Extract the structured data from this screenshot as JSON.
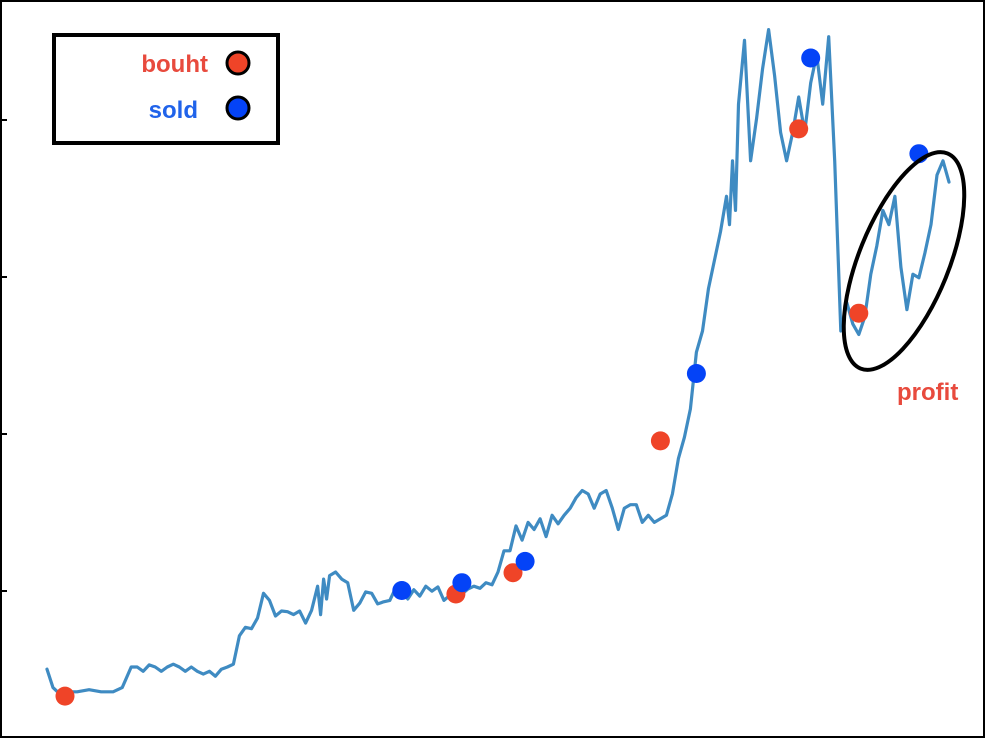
{
  "chart_data": {
    "type": "line",
    "title": "",
    "xlabel": "",
    "ylabel": "",
    "xlim": [
      0,
      300
    ],
    "ylim": [
      0,
      100
    ],
    "grid": false,
    "legend_position": "top-left",
    "series": [
      {
        "color": "#3f8bc2",
        "points": [
          [
            0,
            8.3
          ],
          [
            2,
            5.7
          ],
          [
            5,
            4.5
          ],
          [
            8,
            5.1
          ],
          [
            10,
            5.1
          ],
          [
            14,
            5.4
          ],
          [
            18,
            5.1
          ],
          [
            22,
            5.1
          ],
          [
            25,
            5.7
          ],
          [
            28,
            8.6
          ],
          [
            30,
            8.6
          ],
          [
            32,
            8.0
          ],
          [
            34,
            8.9
          ],
          [
            36,
            8.6
          ],
          [
            38,
            8.0
          ],
          [
            40,
            8.6
          ],
          [
            42,
            9.0
          ],
          [
            44,
            8.6
          ],
          [
            46,
            8.0
          ],
          [
            48,
            8.6
          ],
          [
            50,
            8.0
          ],
          [
            52,
            7.6
          ],
          [
            54,
            8.0
          ],
          [
            56,
            7.3
          ],
          [
            58,
            8.3
          ],
          [
            60,
            8.6
          ],
          [
            62,
            9.0
          ],
          [
            64,
            13.0
          ],
          [
            66,
            14.2
          ],
          [
            68,
            14.0
          ],
          [
            70,
            15.5
          ],
          [
            72,
            19.0
          ],
          [
            74,
            18.0
          ],
          [
            76,
            15.8
          ],
          [
            78,
            16.5
          ],
          [
            80,
            16.4
          ],
          [
            82,
            16.0
          ],
          [
            84,
            16.5
          ],
          [
            86,
            14.8
          ],
          [
            88,
            16.6
          ],
          [
            90,
            20.0
          ],
          [
            91,
            16.0
          ],
          [
            92,
            21.0
          ],
          [
            93,
            18.2
          ],
          [
            94,
            21.5
          ],
          [
            96,
            22.0
          ],
          [
            98,
            21.0
          ],
          [
            100,
            20.5
          ],
          [
            102,
            16.6
          ],
          [
            104,
            17.6
          ],
          [
            106,
            19.2
          ],
          [
            108,
            19.0
          ],
          [
            110,
            17.5
          ],
          [
            112,
            17.8
          ],
          [
            114,
            18.0
          ],
          [
            116,
            19.8
          ],
          [
            118,
            19.4
          ],
          [
            120,
            18.2
          ],
          [
            122,
            19.5
          ],
          [
            124,
            18.6
          ],
          [
            126,
            20.0
          ],
          [
            128,
            19.3
          ],
          [
            130,
            19.9
          ],
          [
            132,
            18.0
          ],
          [
            134,
            18.7
          ],
          [
            136,
            19.5
          ],
          [
            138,
            18.9
          ],
          [
            140,
            19.6
          ],
          [
            142,
            20.0
          ],
          [
            144,
            19.7
          ],
          [
            146,
            20.5
          ],
          [
            148,
            20.2
          ],
          [
            150,
            22.0
          ],
          [
            152,
            25.0
          ],
          [
            154,
            25.0
          ],
          [
            156,
            28.5
          ],
          [
            158,
            26.5
          ],
          [
            160,
            29.0
          ],
          [
            162,
            28.0
          ],
          [
            164,
            29.5
          ],
          [
            166,
            27.0
          ],
          [
            168,
            30.0
          ],
          [
            170,
            28.8
          ],
          [
            172,
            30.0
          ],
          [
            174,
            31.0
          ],
          [
            176,
            32.5
          ],
          [
            178,
            33.5
          ],
          [
            180,
            33.0
          ],
          [
            182,
            31.0
          ],
          [
            184,
            33.0
          ],
          [
            186,
            33.5
          ],
          [
            188,
            31.0
          ],
          [
            190,
            28.0
          ],
          [
            192,
            31.0
          ],
          [
            194,
            31.5
          ],
          [
            196,
            31.5
          ],
          [
            198,
            29.0
          ],
          [
            200,
            30.0
          ],
          [
            202,
            29.0
          ],
          [
            204,
            29.5
          ],
          [
            206,
            30.0
          ],
          [
            208,
            33.0
          ],
          [
            210,
            38.0
          ],
          [
            212,
            41.0
          ],
          [
            214,
            45.0
          ],
          [
            216,
            53.0
          ],
          [
            218,
            56.0
          ],
          [
            220,
            62.0
          ],
          [
            222,
            66.0
          ],
          [
            224,
            70.0
          ],
          [
            226,
            75.0
          ],
          [
            227,
            71.0
          ],
          [
            228,
            80.0
          ],
          [
            229,
            73.0
          ],
          [
            230,
            88.0
          ],
          [
            232,
            97.0
          ],
          [
            234,
            80.0
          ],
          [
            236,
            86.0
          ],
          [
            238,
            93.0
          ],
          [
            240,
            98.5
          ],
          [
            242,
            92.0
          ],
          [
            244,
            84.0
          ],
          [
            246,
            80.0
          ],
          [
            248,
            84.0
          ],
          [
            250,
            89.0
          ],
          [
            252,
            84.0
          ],
          [
            254,
            91.0
          ],
          [
            256,
            95.0
          ],
          [
            258,
            88.0
          ],
          [
            260,
            97.5
          ],
          [
            262,
            80.0
          ],
          [
            264,
            56.0
          ],
          [
            266,
            60.0
          ],
          [
            268,
            57.0
          ],
          [
            270,
            55.5
          ],
          [
            272,
            58.0
          ],
          [
            274,
            64.0
          ],
          [
            276,
            68.0
          ],
          [
            278,
            73.0
          ],
          [
            280,
            71.0
          ],
          [
            282,
            75.0
          ],
          [
            284,
            65.0
          ],
          [
            286,
            59.0
          ],
          [
            288,
            64.0
          ],
          [
            290,
            63.5
          ],
          [
            292,
            67.0
          ],
          [
            294,
            71.0
          ],
          [
            296,
            78.0
          ],
          [
            298,
            80.0
          ],
          [
            300,
            77.0
          ]
        ]
      }
    ],
    "markers": [
      {
        "type": "bought",
        "x": 6,
        "y": 4.5
      },
      {
        "type": "sold",
        "x": 118,
        "y": 19.4
      },
      {
        "type": "bought",
        "x": 136,
        "y": 18.9
      },
      {
        "type": "sold",
        "x": 138,
        "y": 20.5
      },
      {
        "type": "bought",
        "x": 155,
        "y": 21.9
      },
      {
        "type": "sold",
        "x": 159,
        "y": 23.5
      },
      {
        "type": "bought",
        "x": 204,
        "y": 40.5
      },
      {
        "type": "sold",
        "x": 216,
        "y": 50.0
      },
      {
        "type": "bought",
        "x": 250,
        "y": 84.5
      },
      {
        "type": "sold",
        "x": 254,
        "y": 94.5
      },
      {
        "type": "bought",
        "x": 270,
        "y": 58.5
      },
      {
        "type": "sold",
        "x": 290,
        "y": 81.0
      }
    ],
    "legend": [
      {
        "label": "bouht",
        "marker_color": "#ef4428"
      },
      {
        "label": "sold",
        "marker_color": "#0443f7"
      }
    ],
    "annotation": {
      "text": "profit",
      "color": "#e84a3d"
    }
  },
  "colors": {
    "line": "#3f8bc2",
    "bought": "#ef4428",
    "sold": "#0443f7",
    "bought_label": "#e84a3d",
    "sold_label": "#2063ea",
    "frame": "#000000"
  }
}
